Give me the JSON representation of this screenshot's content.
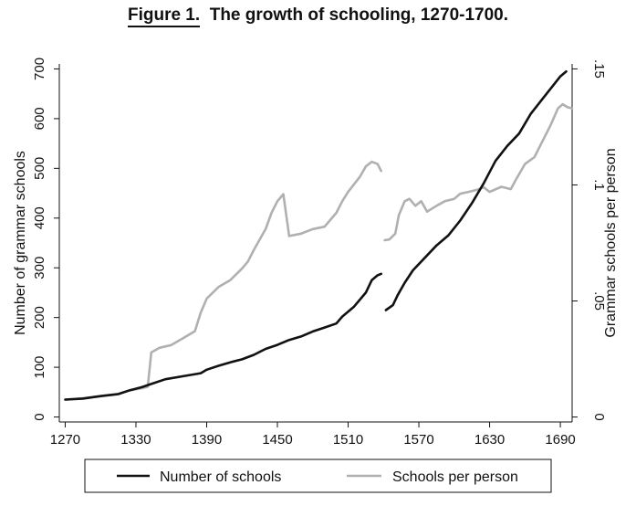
{
  "figure": {
    "label": "Figure 1.",
    "title": "The growth of schooling, 1270-1700."
  },
  "chart_data": {
    "type": "line",
    "title": "The growth of schooling, 1270-1700.",
    "xlabel": "",
    "ylabel": "Number of grammar schools",
    "y2label": "Grammar schools per person",
    "xlim": [
      1265,
      1700
    ],
    "ylim": [
      -10,
      710
    ],
    "y2lim": [
      -0.00214,
      0.15214
    ],
    "x_ticks": [
      "1270",
      "1330",
      "1390",
      "1450",
      "1510",
      "1570",
      "1630",
      "1690"
    ],
    "x_tick_values": [
      1270,
      1330,
      1390,
      1450,
      1510,
      1570,
      1630,
      1690
    ],
    "y_ticks": [
      "0",
      "100",
      "200",
      "300",
      "400",
      "500",
      "600",
      "700"
    ],
    "y_tick_values": [
      0,
      100,
      200,
      300,
      400,
      500,
      600,
      700
    ],
    "y2_ticks": [
      "0",
      ".05",
      ".1",
      ".15"
    ],
    "y2_tick_values": [
      0,
      0.05,
      0.1,
      0.15
    ],
    "legend_position": "bottom",
    "series": [
      {
        "name": "Number of schools",
        "axis": "left",
        "color": "#111111",
        "segments": [
          [
            [
              1270,
              35
            ],
            [
              1285,
              37
            ],
            [
              1300,
              42
            ],
            [
              1315,
              46
            ],
            [
              1325,
              54
            ],
            [
              1335,
              60
            ],
            [
              1345,
              68
            ],
            [
              1355,
              76
            ],
            [
              1370,
              82
            ],
            [
              1385,
              88
            ],
            [
              1390,
              95
            ],
            [
              1400,
              103
            ],
            [
              1410,
              110
            ],
            [
              1420,
              116
            ],
            [
              1430,
              125
            ],
            [
              1440,
              137
            ],
            [
              1450,
              145
            ],
            [
              1460,
              155
            ],
            [
              1470,
              162
            ],
            [
              1480,
              172
            ],
            [
              1490,
              180
            ],
            [
              1500,
              188
            ],
            [
              1505,
              202
            ],
            [
              1515,
              222
            ],
            [
              1525,
              250
            ],
            [
              1530,
              275
            ],
            [
              1535,
              285
            ],
            [
              1538,
              288
            ]
          ],
          [
            [
              1542,
              215
            ],
            [
              1548,
              225
            ],
            [
              1552,
              245
            ],
            [
              1558,
              270
            ],
            [
              1565,
              295
            ],
            [
              1575,
              320
            ],
            [
              1585,
              345
            ],
            [
              1595,
              365
            ],
            [
              1605,
              395
            ],
            [
              1615,
              430
            ],
            [
              1625,
              470
            ],
            [
              1635,
              515
            ],
            [
              1645,
              545
            ],
            [
              1655,
              570
            ],
            [
              1665,
              610
            ],
            [
              1675,
              640
            ],
            [
              1685,
              670
            ],
            [
              1690,
              685
            ],
            [
              1695,
              695
            ]
          ]
        ]
      },
      {
        "name": "Schools per person",
        "axis": "right",
        "color": "#b0b0b0",
        "segments": [
          [
            [
              1270,
              0.0075
            ],
            [
              1285,
              0.0081
            ],
            [
              1300,
              0.009
            ],
            [
              1315,
              0.01
            ],
            [
              1325,
              0.0115
            ],
            [
              1335,
              0.0124
            ],
            [
              1340,
              0.013
            ],
            [
              1343,
              0.0278
            ],
            [
              1350,
              0.0298
            ],
            [
              1360,
              0.031
            ],
            [
              1370,
              0.034
            ],
            [
              1380,
              0.037
            ],
            [
              1385,
              0.045
            ],
            [
              1390,
              0.051
            ],
            [
              1400,
              0.056
            ],
            [
              1410,
              0.059
            ],
            [
              1420,
              0.064
            ],
            [
              1425,
              0.067
            ],
            [
              1430,
              0.072
            ],
            [
              1440,
              0.081
            ],
            [
              1445,
              0.088
            ],
            [
              1450,
              0.093
            ],
            [
              1455,
              0.096
            ],
            [
              1460,
              0.078
            ],
            [
              1470,
              0.079
            ],
            [
              1480,
              0.081
            ],
            [
              1490,
              0.082
            ],
            [
              1500,
              0.088
            ],
            [
              1505,
              0.093
            ],
            [
              1510,
              0.097
            ],
            [
              1520,
              0.1035
            ],
            [
              1525,
              0.108
            ],
            [
              1530,
              0.11
            ],
            [
              1535,
              0.109
            ],
            [
              1538,
              0.106
            ]
          ],
          [
            [
              1541,
              0.0762
            ],
            [
              1545,
              0.0765
            ],
            [
              1550,
              0.079
            ],
            [
              1553,
              0.087
            ],
            [
              1558,
              0.093
            ],
            [
              1562,
              0.094
            ],
            [
              1567,
              0.091
            ],
            [
              1572,
              0.093
            ],
            [
              1577,
              0.0885
            ],
            [
              1585,
              0.091
            ],
            [
              1592,
              0.093
            ],
            [
              1600,
              0.094
            ],
            [
              1605,
              0.0962
            ],
            [
              1612,
              0.097
            ],
            [
              1620,
              0.098
            ],
            [
              1625,
              0.099
            ],
            [
              1630,
              0.097
            ],
            [
              1640,
              0.0992
            ],
            [
              1648,
              0.0982
            ],
            [
              1652,
              0.102
            ],
            [
              1660,
              0.109
            ],
            [
              1668,
              0.112
            ],
            [
              1675,
              0.119
            ],
            [
              1682,
              0.126
            ],
            [
              1688,
              0.133
            ],
            [
              1692,
              0.1348
            ],
            [
              1696,
              0.1335
            ],
            [
              1700,
              0.133
            ]
          ]
        ]
      }
    ]
  }
}
